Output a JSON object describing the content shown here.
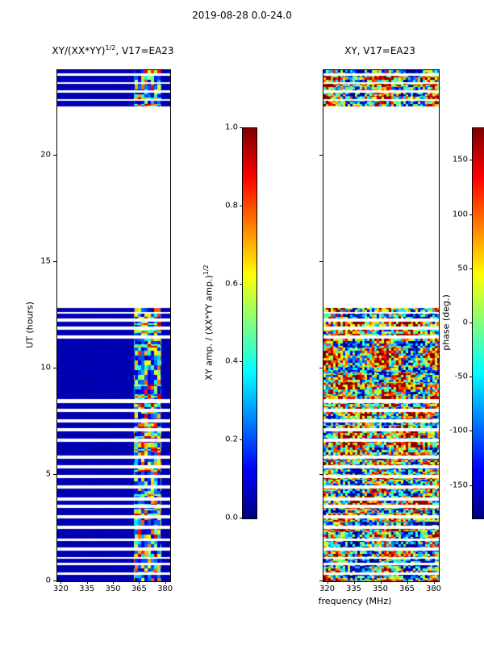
{
  "figure": {
    "title": "2019-08-28 0.0-24.0",
    "background": "#ffffff",
    "colormap": "jet"
  },
  "chart_data": [
    {
      "type": "heatmap",
      "title_parts": {
        "pre": "XY/(XX*YY)",
        "sup": "1/2",
        "post": ", V17=EA23"
      },
      "xlabel": "",
      "ylabel": "UT (hours)",
      "xlim": [
        317.5,
        382.5
      ],
      "ylim": [
        0,
        24
      ],
      "xticks": [
        "320",
        "335",
        "350",
        "365",
        "380"
      ],
      "yticks": [
        "0",
        "5",
        "10",
        "15",
        "20"
      ],
      "colormap": "jet",
      "value_range": [
        0,
        1
      ],
      "description": "Normalized cross-amplitude XY/(XX*YY)^1/2 vs UT and frequency. Mostly near 0 (dark blue) at 320-360 MHz; elevated blocky values 0.2-0.9 in the 361-377 MHz RFI band; white horizontal rows are missing data; no data between ~12.9h and ~22.3h.",
      "feature_freq_range": [
        361.5,
        377.5
      ],
      "base_value_range": [
        0.02,
        0.08
      ],
      "feature_value_range": [
        0.1,
        0.95
      ],
      "time_bands": [
        [
          0.0,
          0.3
        ],
        [
          0.42,
          0.75
        ],
        [
          0.88,
          1.05
        ],
        [
          1.15,
          1.45
        ],
        [
          1.6,
          1.9
        ],
        [
          2.02,
          2.45
        ],
        [
          2.6,
          2.95
        ],
        [
          3.1,
          3.45
        ],
        [
          3.6,
          3.8
        ],
        [
          3.92,
          4.35
        ],
        [
          4.5,
          4.85
        ],
        [
          5.0,
          5.3
        ],
        [
          5.45,
          5.75
        ],
        [
          5.9,
          6.55
        ],
        [
          6.7,
          7.05
        ],
        [
          7.2,
          7.45
        ],
        [
          7.6,
          7.95
        ],
        [
          8.1,
          8.35
        ],
        [
          8.55,
          11.4
        ],
        [
          11.55,
          11.8
        ],
        [
          11.95,
          12.2
        ],
        [
          12.35,
          12.55
        ],
        [
          12.65,
          12.85
        ],
        [
          22.3,
          22.55
        ],
        [
          22.65,
          22.95
        ],
        [
          23.05,
          23.35
        ],
        [
          23.45,
          23.75
        ],
        [
          23.85,
          24.0
        ]
      ],
      "colorbar": {
        "label_parts": {
          "pre": "XY amp. / (XX*YY amp.)",
          "sup": "1/2"
        },
        "ticks": [
          "1.0",
          "0.8",
          "0.6",
          "0.4",
          "0.2",
          "0.0"
        ],
        "range": [
          0,
          1
        ]
      }
    },
    {
      "type": "heatmap",
      "title": "XY, V17=EA23",
      "xlabel": "frequency (MHz)",
      "ylabel": "",
      "xlim": [
        317.5,
        382.5
      ],
      "ylim": [
        0,
        24
      ],
      "xticks": [
        "320",
        "335",
        "350",
        "365",
        "380"
      ],
      "yticks": [],
      "colormap": "jet",
      "value_range": [
        -180,
        180
      ],
      "description": "XY cross-correlation phase (degrees) vs UT and frequency. Noisy full-range phase mosaic (red/blue/cyan/yellow patches) across the whole band wherever data exists; same white no-data rows as left panel.",
      "time_bands": [
        [
          0.0,
          0.3
        ],
        [
          0.42,
          0.75
        ],
        [
          0.88,
          1.05
        ],
        [
          1.15,
          1.45
        ],
        [
          1.6,
          1.9
        ],
        [
          2.02,
          2.45
        ],
        [
          2.6,
          2.95
        ],
        [
          3.1,
          3.45
        ],
        [
          3.6,
          3.8
        ],
        [
          3.92,
          4.35
        ],
        [
          4.5,
          4.85
        ],
        [
          5.0,
          5.3
        ],
        [
          5.45,
          5.75
        ],
        [
          5.9,
          6.55
        ],
        [
          6.7,
          7.05
        ],
        [
          7.2,
          7.45
        ],
        [
          7.6,
          7.95
        ],
        [
          8.1,
          8.35
        ],
        [
          8.55,
          11.4
        ],
        [
          11.55,
          11.8
        ],
        [
          11.95,
          12.2
        ],
        [
          12.35,
          12.55
        ],
        [
          12.65,
          12.85
        ],
        [
          22.3,
          22.55
        ],
        [
          22.65,
          22.95
        ],
        [
          23.05,
          23.35
        ],
        [
          23.45,
          23.75
        ],
        [
          23.85,
          24.0
        ]
      ],
      "colorbar": {
        "label": "phase (deg.)",
        "ticks": [
          "150",
          "100",
          "50",
          "0",
          "-50",
          "-100",
          "-150"
        ],
        "range": [
          -180,
          180
        ]
      }
    }
  ]
}
